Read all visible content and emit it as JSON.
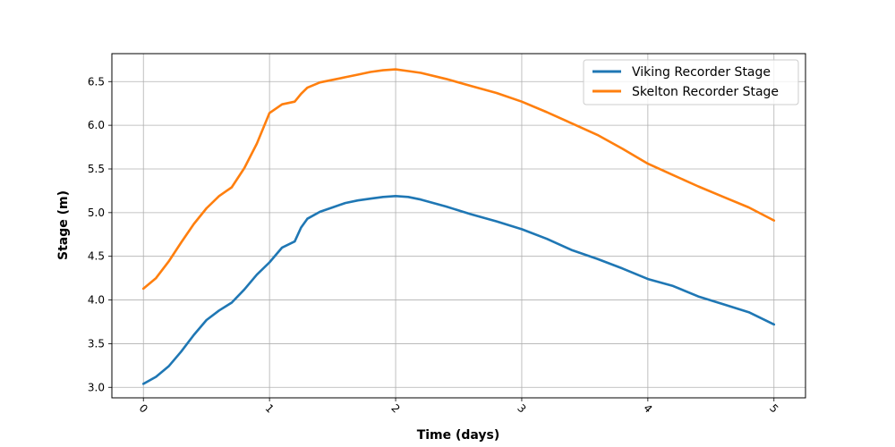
{
  "chart_data": {
    "type": "line",
    "xlabel": "Time (days)",
    "ylabel": "Stage (m)",
    "xlim": [
      -0.25,
      5.25
    ],
    "ylim": [
      2.88,
      6.82
    ],
    "x_ticks": [
      0,
      1,
      2,
      3,
      4,
      5
    ],
    "x_tick_labels": [
      "0",
      "1",
      "2",
      "3",
      "4",
      "5"
    ],
    "x_tick_rotation_deg": 45,
    "y_ticks": [
      3.0,
      3.5,
      4.0,
      4.5,
      5.0,
      5.5,
      6.0,
      6.5
    ],
    "y_tick_labels": [
      "3.0",
      "3.5",
      "4.0",
      "4.5",
      "5.0",
      "5.5",
      "6.0",
      "6.5"
    ],
    "grid": true,
    "legend_position": "top-right",
    "series": [
      {
        "name": "Viking Recorder Stage",
        "color": "#1f77b4",
        "x": [
          0,
          0.1,
          0.2,
          0.3,
          0.4,
          0.5,
          0.6,
          0.7,
          0.8,
          0.9,
          1.0,
          1.1,
          1.2,
          1.25,
          1.3,
          1.4,
          1.5,
          1.6,
          1.7,
          1.8,
          1.9,
          2.0,
          2.1,
          2.2,
          2.4,
          2.6,
          2.8,
          3.0,
          3.2,
          3.4,
          3.6,
          3.8,
          4.0,
          4.2,
          4.4,
          4.6,
          4.8,
          5.0
        ],
        "y": [
          3.04,
          3.12,
          3.24,
          3.41,
          3.6,
          3.77,
          3.88,
          3.97,
          4.12,
          4.29,
          4.43,
          4.6,
          4.67,
          4.83,
          4.93,
          5.01,
          5.06,
          5.11,
          5.14,
          5.16,
          5.18,
          5.19,
          5.18,
          5.15,
          5.07,
          4.98,
          4.9,
          4.81,
          4.7,
          4.57,
          4.47,
          4.36,
          4.24,
          4.16,
          4.04,
          3.95,
          3.86,
          3.72
        ]
      },
      {
        "name": "Skelton Recorder Stage",
        "color": "#ff7f0e",
        "x": [
          0,
          0.1,
          0.2,
          0.3,
          0.4,
          0.5,
          0.6,
          0.7,
          0.8,
          0.9,
          1.0,
          1.1,
          1.2,
          1.25,
          1.3,
          1.4,
          1.5,
          1.6,
          1.7,
          1.8,
          1.9,
          2.0,
          2.1,
          2.2,
          2.4,
          2.6,
          2.8,
          3.0,
          3.2,
          3.4,
          3.6,
          3.8,
          4.0,
          4.2,
          4.4,
          4.6,
          4.8,
          5.0
        ],
        "y": [
          4.13,
          4.25,
          4.44,
          4.66,
          4.87,
          5.05,
          5.19,
          5.29,
          5.51,
          5.79,
          6.14,
          6.24,
          6.27,
          6.36,
          6.43,
          6.49,
          6.52,
          6.55,
          6.58,
          6.61,
          6.63,
          6.64,
          6.62,
          6.6,
          6.53,
          6.45,
          6.37,
          6.27,
          6.15,
          6.02,
          5.89,
          5.73,
          5.56,
          5.43,
          5.3,
          5.18,
          5.06,
          4.91
        ]
      }
    ]
  }
}
